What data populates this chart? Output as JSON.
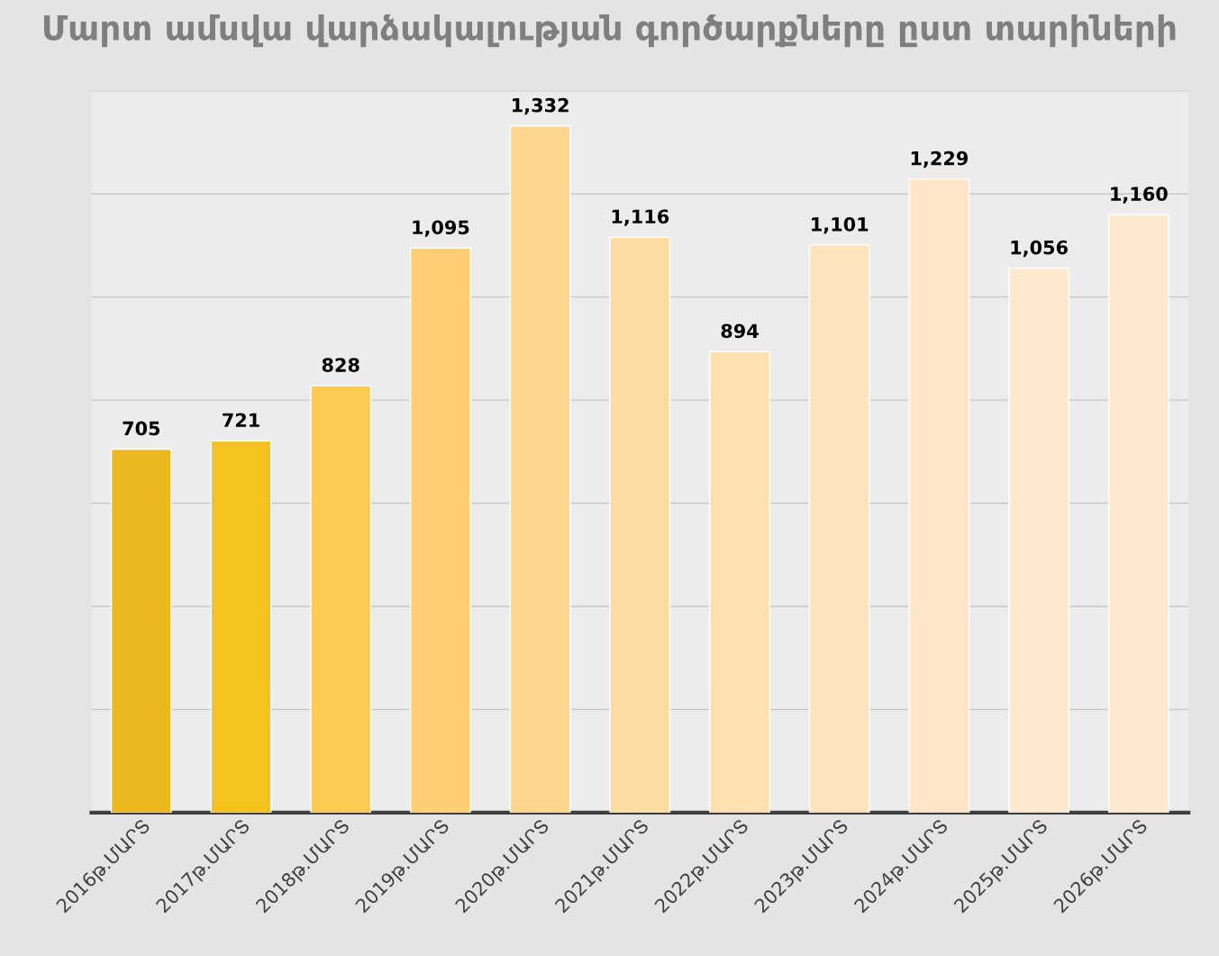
{
  "chart_data": {
    "type": "bar",
    "title": "Մարտ ամսվա վարձակալության գործարքները ըստ տարիների",
    "categories": [
      "2016թ.ՄԱՐՏ",
      "2017թ.ՄԱՐՏ",
      "2018թ.ՄԱՐՏ",
      "2019թ.ՄԱՐՏ",
      "2020թ.ՄԱՐՏ",
      "2021թ.ՄԱՐՏ",
      "2022թ.ՄԱՐՏ",
      "2023թ.ՄԱՐՏ",
      "2024թ.ՄԱՐՏ",
      "2025թ.ՄԱՐՏ",
      "2026թ.ՄԱՐՏ"
    ],
    "values": [
      705,
      721,
      828,
      1095,
      1332,
      1116,
      894,
      1101,
      1229,
      1056,
      1160
    ],
    "value_labels": [
      "705",
      "721",
      "828",
      "1,095",
      "1,332",
      "1,116",
      "894",
      "1,101",
      "1,229",
      "1,056",
      "1,160"
    ],
    "colors": [
      "#ebb820",
      "#f5c21e",
      "#fcca52",
      "#fdcf72",
      "#fdd68e",
      "#fddca2",
      "#fee0b0",
      "#fee3bd",
      "#fee6c7",
      "#fee9cf",
      "#fde8d0"
    ],
    "ylim": [
      0,
      1400
    ],
    "yticks": [
      {
        "value": 0,
        "label": null
      },
      {
        "value": 200,
        "label": null
      },
      {
        "value": 400,
        "label": null
      },
      {
        "value": 600,
        "label": null
      },
      {
        "value": 800,
        "label": null
      },
      {
        "value": 1000,
        "label": null
      },
      {
        "value": 1200,
        "label": null
      },
      {
        "value": 1400,
        "label": null
      }
    ],
    "tick_labels": "x",
    "grid": "y",
    "legend": false
  }
}
